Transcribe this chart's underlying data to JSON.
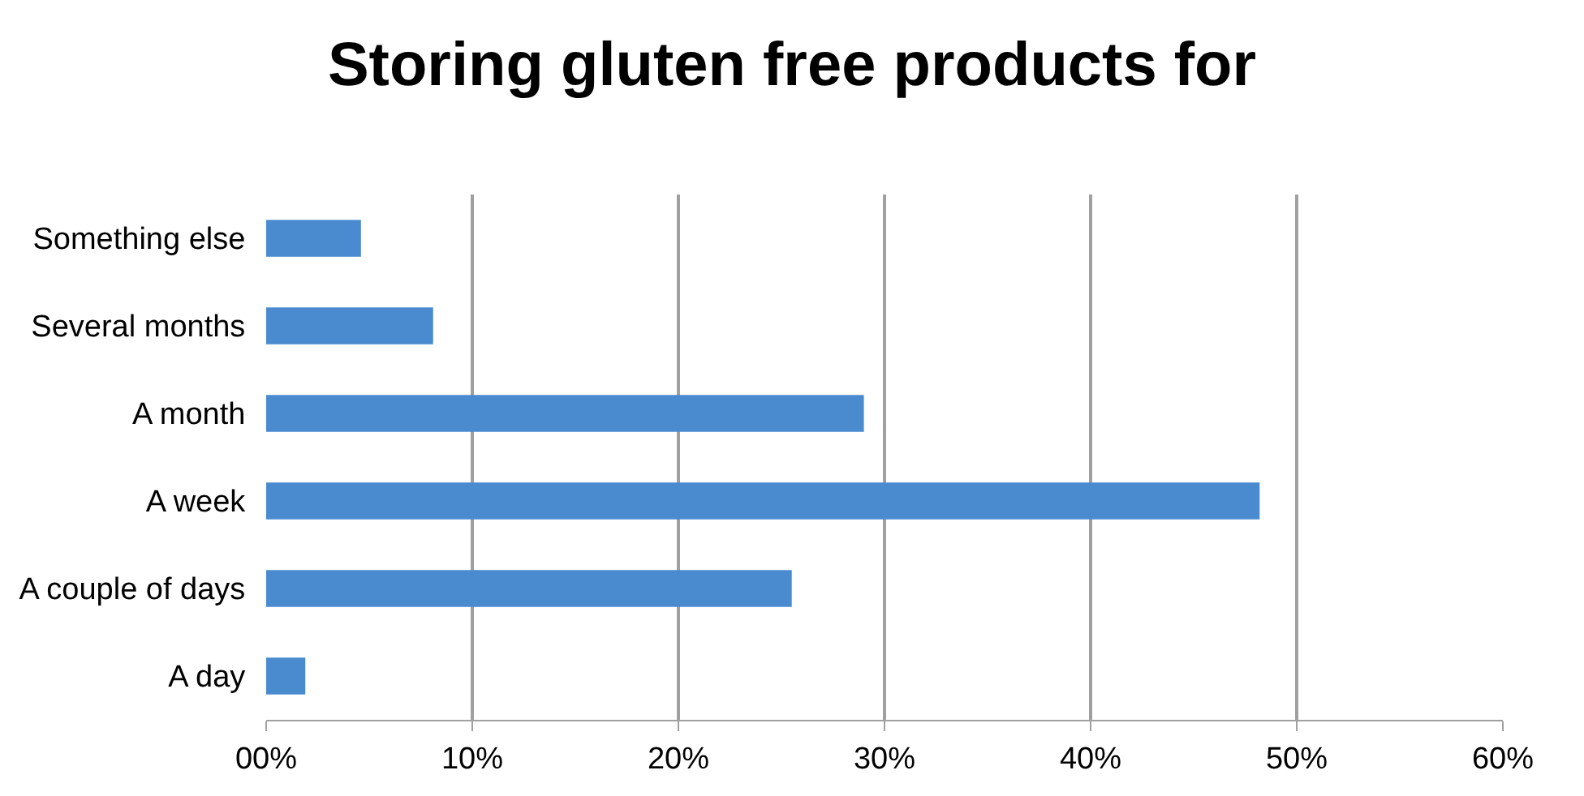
{
  "chart_data": {
    "type": "bar",
    "orientation": "horizontal",
    "title": "Storing gluten free products for",
    "categories": [
      "Something else",
      "Several months",
      "A month",
      "A week",
      "A couple of days",
      "A day"
    ],
    "values": [
      4.6,
      8.1,
      29.0,
      48.2,
      25.5,
      1.9
    ],
    "color": "#4a8bd0",
    "xlim": [
      0,
      60
    ],
    "xticks": [
      {
        "value": 0,
        "label": "00%"
      },
      {
        "value": 10,
        "label": "10%"
      },
      {
        "value": 20,
        "label": "20%"
      },
      {
        "value": 30,
        "label": "30%"
      },
      {
        "value": 40,
        "label": "40%"
      },
      {
        "value": 50,
        "label": "50%"
      },
      {
        "value": 60,
        "label": "60%"
      }
    ],
    "grid": "x"
  }
}
